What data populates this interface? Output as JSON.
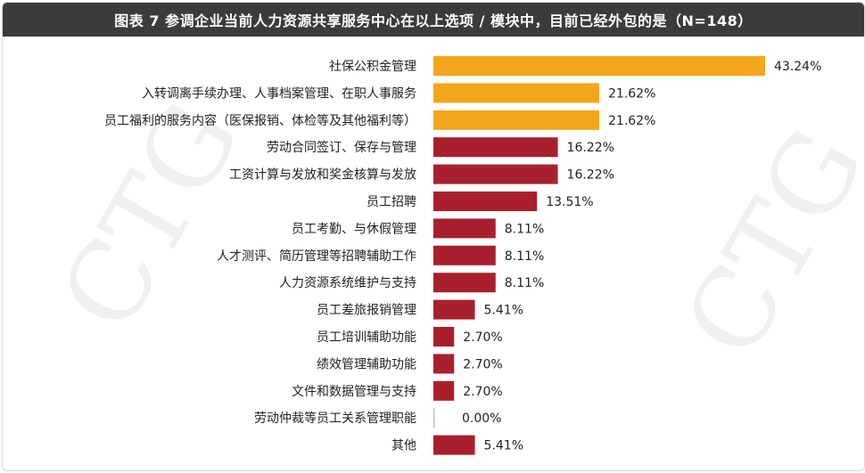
{
  "chart_data": {
    "type": "bar",
    "orientation": "horizontal",
    "title": "图表 7 参调企业当前人力资源共享服务中心在以上选项 / 模块中，目前已经外包的是（N=148）",
    "categories": [
      "社保公积金管理",
      "入转调离手续办理、人事档案管理、在职人事服务",
      "员工福利的服务内容（医保报销、体检等及其他福利等）",
      "劳动合同签订、保存与管理",
      "工资计算与发放和奖金核算与发放",
      "员工招聘",
      "员工考勤、与休假管理",
      "人才测评、简历管理等招聘辅助工作",
      "人力资源系统维护与支持",
      "员工差旅报销管理",
      "员工培训辅助功能",
      "绩效管理辅助功能",
      "文件和数据管理与支持",
      "劳动仲裁等员工关系管理职能",
      "其他"
    ],
    "values": [
      43.24,
      21.62,
      21.62,
      16.22,
      16.22,
      13.51,
      8.11,
      8.11,
      8.11,
      5.41,
      2.7,
      2.7,
      2.7,
      0.0,
      5.41
    ],
    "value_labels": [
      "43.24%",
      "21.62%",
      "21.62%",
      "16.22%",
      "16.22%",
      "13.51%",
      "8.11%",
      "8.11%",
      "8.11%",
      "5.41%",
      "2.70%",
      "2.70%",
      "2.70%",
      "0.00%",
      "5.41%"
    ],
    "unit": "%",
    "xlim": [
      0,
      50
    ],
    "highlight_count": 3,
    "colors": {
      "highlight": "#F5A51C",
      "default": "#A8202D",
      "title_bg": "#3B3B3B"
    },
    "grid": false,
    "legend": "none"
  }
}
